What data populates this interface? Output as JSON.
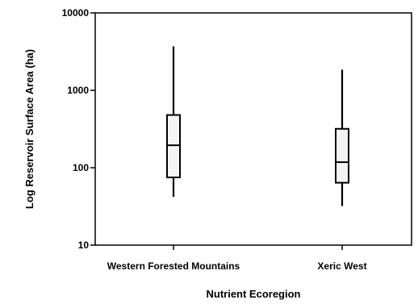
{
  "chart_data": {
    "type": "boxplot",
    "xlabel": "Nutrient Ecoregion",
    "ylabel": "Log Reservoir Surface Area (ha)",
    "y_scale": "log",
    "ylim": [
      10,
      10000
    ],
    "y_ticks": [
      10,
      100,
      1000,
      10000
    ],
    "y_tick_labels": [
      "10",
      "100",
      "1000",
      "10000"
    ],
    "grid": false,
    "categories": [
      "Western  Forested  Mountains",
      "Xeric  West"
    ],
    "boxes": [
      {
        "category": "Western  Forested  Mountains",
        "whisker_low": 42,
        "q1": 75,
        "median": 195,
        "q3": 480,
        "whisker_high": 3700
      },
      {
        "category": "Xeric  West",
        "whisker_low": 32,
        "q1": 64,
        "median": 118,
        "q3": 318,
        "whisker_high": 1850
      }
    ],
    "colors": {
      "box_fill": "#f4f4f4",
      "stroke": "#000000"
    }
  }
}
